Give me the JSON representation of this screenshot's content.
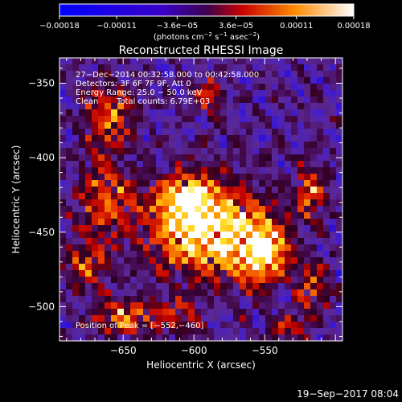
{
  "chart_data": {
    "type": "heatmap",
    "title": "Reconstructed RHESSI Image",
    "xlabel": "Heliocentric X (arcsec)",
    "ylabel": "Heliocentric Y (arcsec)",
    "xlim": [
      -695,
      -495
    ],
    "ylim": [
      -523,
      -333
    ],
    "x_ticks": [
      -650,
      -600,
      -550
    ],
    "y_ticks": [
      -500,
      -450,
      -400,
      -350
    ],
    "x_tick_labels": [
      "−650",
      "−600",
      "−550"
    ],
    "y_tick_labels": [
      "−500",
      "−450",
      "−400",
      "−350"
    ],
    "colorbar": {
      "range": [
        -0.00018,
        0.00018
      ],
      "ticks": [
        -0.00018,
        -0.00011,
        -3.6e-05,
        3.6e-05,
        0.00011,
        0.00018
      ],
      "tick_labels": [
        "−0.00018",
        "−0.00011",
        "−3.6e−05",
        "3.6e−05",
        "0.00011",
        "0.00018"
      ],
      "label_main": "(photons cm",
      "label_exp1": "−2",
      "label_mid1": " s",
      "label_exp2": "−1",
      "label_mid2": " asec",
      "label_exp3": "−2",
      "label_end": ")"
    },
    "annotations": {
      "time_range": "27−Dec−2014 00:32:58.000 to 00:42:58.000",
      "detectors": "Detectors: 3F 6F 7F 9F, Att 0",
      "energy": "Energy Range: 25.0 − 50.0 keV",
      "method": "Clean",
      "counts": "Total counts: 6.79E+03",
      "peak": "Position of Peak = [−552,−460]"
    },
    "peak": [
      -552,
      -460
    ],
    "sources": [
      {
        "x": -592,
        "y": -447,
        "amp": 1.0,
        "sx": 25,
        "sy": 22
      },
      {
        "x": -552,
        "y": -462,
        "amp": 0.9,
        "sx": 13,
        "sy": 15
      },
      {
        "x": -608,
        "y": -430,
        "amp": 0.55,
        "sx": 12,
        "sy": 11
      },
      {
        "x": -660,
        "y": -372,
        "amp": 0.55,
        "sx": 12,
        "sy": 14
      },
      {
        "x": -662,
        "y": -428,
        "amp": 0.5,
        "sx": 14,
        "sy": 20
      },
      {
        "x": -676,
        "y": -472,
        "amp": 0.45,
        "sx": 10,
        "sy": 12
      },
      {
        "x": -648,
        "y": -507,
        "amp": 0.55,
        "sx": 16,
        "sy": 8
      },
      {
        "x": -518,
        "y": -422,
        "amp": 0.5,
        "sx": 8,
        "sy": 14
      },
      {
        "x": -515,
        "y": -488,
        "amp": 0.45,
        "sx": 8,
        "sy": 11
      },
      {
        "x": -535,
        "y": -515,
        "amp": 0.4,
        "sx": 10,
        "sy": 6
      },
      {
        "x": -590,
        "y": -358,
        "amp": 0.35,
        "sx": 9,
        "sy": 9
      },
      {
        "x": -610,
        "y": -508,
        "amp": 0.35,
        "sx": 10,
        "sy": 8
      }
    ]
  },
  "footer": {
    "timestamp": "19−Sep−2017 08:04"
  }
}
